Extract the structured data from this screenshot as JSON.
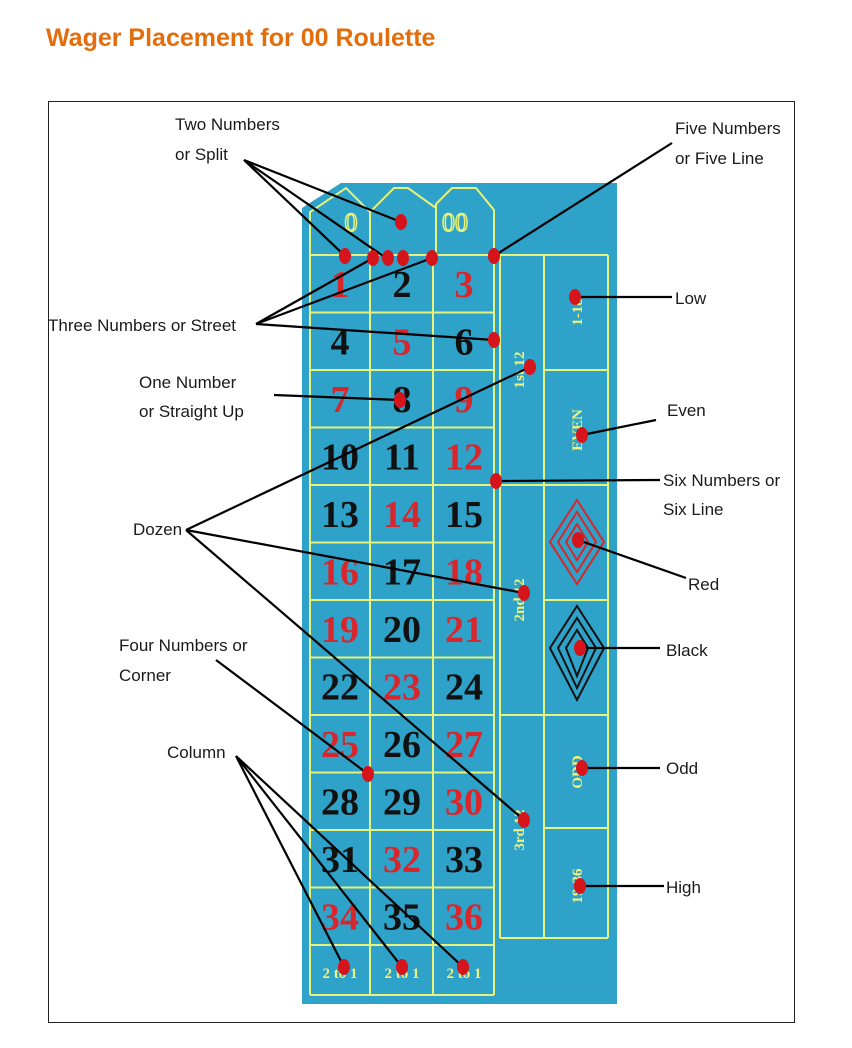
{
  "title": "Wager Placement for 00 Roulette",
  "colors": {
    "felt": "#2ea2c8",
    "line": "#e6f27a",
    "red": "#d9262c",
    "black": "#111111",
    "dot": "#d6141c",
    "title": "#e46c0a"
  },
  "table": {
    "zero": "0",
    "double_zero": "00",
    "rows": [
      [
        1,
        2,
        3
      ],
      [
        4,
        5,
        6
      ],
      [
        7,
        8,
        9
      ],
      [
        10,
        11,
        12
      ],
      [
        13,
        14,
        15
      ],
      [
        16,
        17,
        18
      ],
      [
        19,
        20,
        21
      ],
      [
        22,
        23,
        24
      ],
      [
        25,
        26,
        27
      ],
      [
        28,
        29,
        30
      ],
      [
        31,
        32,
        33
      ],
      [
        34,
        35,
        36
      ]
    ],
    "red_numbers": [
      1,
      3,
      5,
      7,
      9,
      12,
      14,
      16,
      18,
      19,
      21,
      23,
      25,
      27,
      30,
      32,
      34,
      36
    ],
    "dozens": [
      "1st 12",
      "2nd 12",
      "3rd 12"
    ],
    "column_bets": [
      "2 to 1",
      "2 to 1",
      "2 to 1"
    ],
    "even_money": {
      "low": "1-18",
      "even": "EVEN",
      "odd": "ODD",
      "high": "19-36"
    }
  },
  "labels": {
    "two_numbers": [
      "Two Numbers",
      "or Split"
    ],
    "five_numbers": [
      "Five Numbers",
      "or Five Line"
    ],
    "three_numbers": "Three Numbers or Street",
    "low": "Low",
    "one_number": [
      "One Number",
      "or Straight Up"
    ],
    "even": "Even",
    "six_numbers": [
      "Six Numbers or",
      "Six Line"
    ],
    "dozen": "Dozen",
    "red": "Red",
    "black": "Black",
    "four_numbers": [
      "Four Numbers or",
      "Corner"
    ],
    "column": "Column",
    "odd": "Odd",
    "high": "High"
  }
}
